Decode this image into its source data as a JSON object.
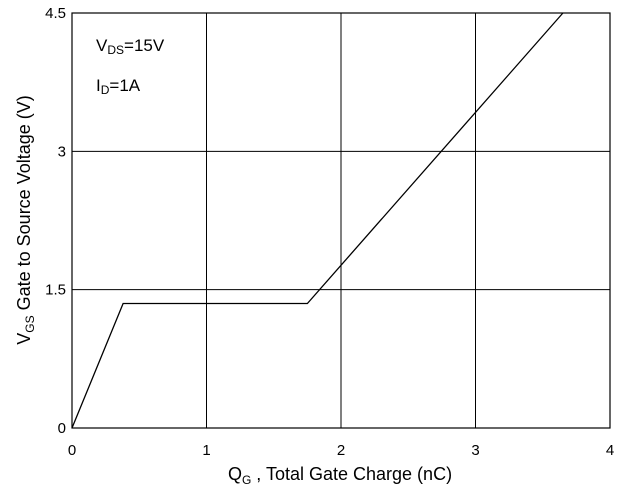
{
  "chart_data": {
    "type": "line",
    "xlabel": {
      "main": "Q",
      "sub": "G",
      "rest": " , Total Gate Charge (nC)"
    },
    "ylabel": {
      "main": "V",
      "sub": "GS",
      "rest": "  Gate to Source Voltage (V)"
    },
    "xlim": [
      0,
      4
    ],
    "ylim": [
      0,
      4.5
    ],
    "x_ticks": [
      0,
      1,
      2,
      3,
      4
    ],
    "y_ticks": [
      0,
      1.5,
      3,
      4.5
    ],
    "x_tick_labels": [
      "0",
      "1",
      "2",
      "3",
      "4"
    ],
    "y_tick_labels": [
      "0",
      "1.5",
      "3",
      "4.5"
    ],
    "grid": true,
    "series": [
      {
        "x": [
          0,
          0.38,
          1.75,
          3.65
        ],
        "y": [
          0,
          1.35,
          1.35,
          4.5
        ]
      }
    ],
    "annotations": [
      {
        "main": "V",
        "sub": "DS",
        "rest": "=15V"
      },
      {
        "main": "I",
        "sub": "D",
        "rest": "=1A"
      }
    ]
  }
}
